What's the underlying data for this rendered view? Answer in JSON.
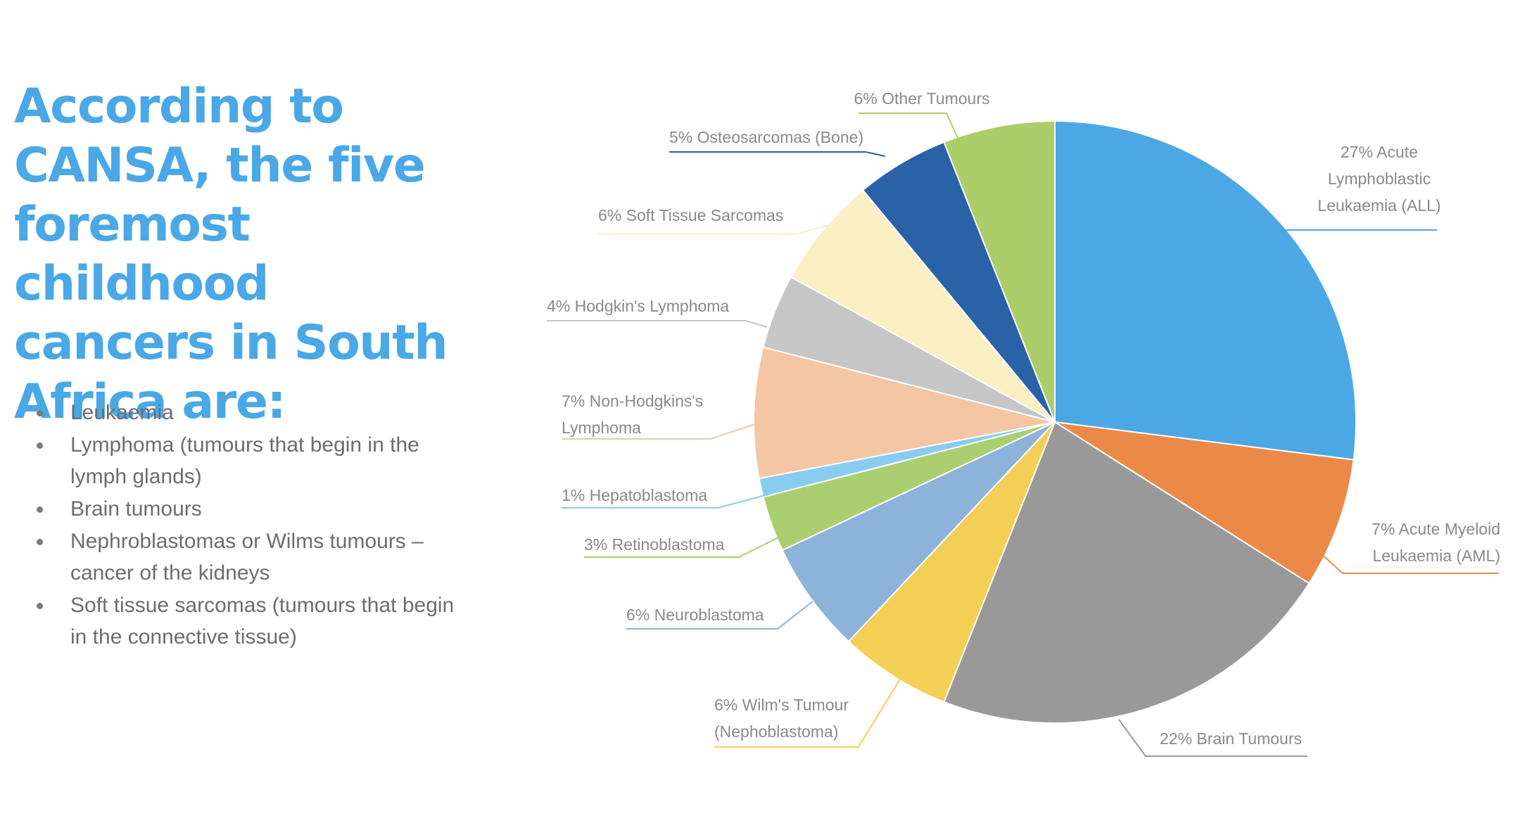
{
  "heading": {
    "lines": [
      "According to",
      "CANSA, the five",
      "foremost",
      "childhood",
      "cancers in South",
      "Africa are:"
    ]
  },
  "list": {
    "items": [
      "Leukaemia",
      "Lymphoma (tumours that begin in the lymph glands)",
      "Brain tumours",
      "Nephroblastomas or Wilms tumours – cancer of the kidneys",
      "Soft tissue sarcomas (tumours that begin in the connective tissue)"
    ]
  },
  "chart_data": {
    "type": "pie",
    "title": "",
    "slices": [
      {
        "label_lines": [
          "27% Acute",
          "Lymphoblastic",
          "Leukaemia (ALL)"
        ],
        "value": 27,
        "color": "#4ca8e4"
      },
      {
        "label_lines": [
          "7% Acute Myeloid",
          "Leukaemia (AML)"
        ],
        "value": 7,
        "color": "#eb8a47"
      },
      {
        "label_lines": [
          "22% Brain Tumours"
        ],
        "value": 22,
        "color": "#999999"
      },
      {
        "label_lines": [
          "6% Wilm's Tumour",
          "(Nephoblastoma)"
        ],
        "value": 6,
        "color": "#f3cf56"
      },
      {
        "label_lines": [
          "6% Neuroblastoma"
        ],
        "value": 6,
        "color": "#8db3db"
      },
      {
        "label_lines": [
          "3% Retinoblastoma"
        ],
        "value": 3,
        "color": "#a9cf70"
      },
      {
        "label_lines": [
          "1% Hepatoblastoma"
        ],
        "value": 1,
        "color": "#88ccf0"
      },
      {
        "label_lines": [
          "7% Non-Hodgkins's",
          "Lymphoma"
        ],
        "value": 7,
        "color": "#f4c6a4"
      },
      {
        "label_lines": [
          "4% Hodgkin's Lymphoma"
        ],
        "value": 4,
        "color": "#c6c6c6"
      },
      {
        "label_lines": [
          "6% Soft Tissue Sarcomas"
        ],
        "value": 6,
        "color": "#fbefc4"
      },
      {
        "label_lines": [
          "5% Osteosarcomas (Bone)"
        ],
        "value": 5,
        "color": "#2a62a8"
      },
      {
        "label_lines": [
          "6% Other Tumours"
        ],
        "value": 6,
        "color": "#abcd6a"
      }
    ],
    "legend": "none",
    "labels": "outside with leader lines"
  }
}
